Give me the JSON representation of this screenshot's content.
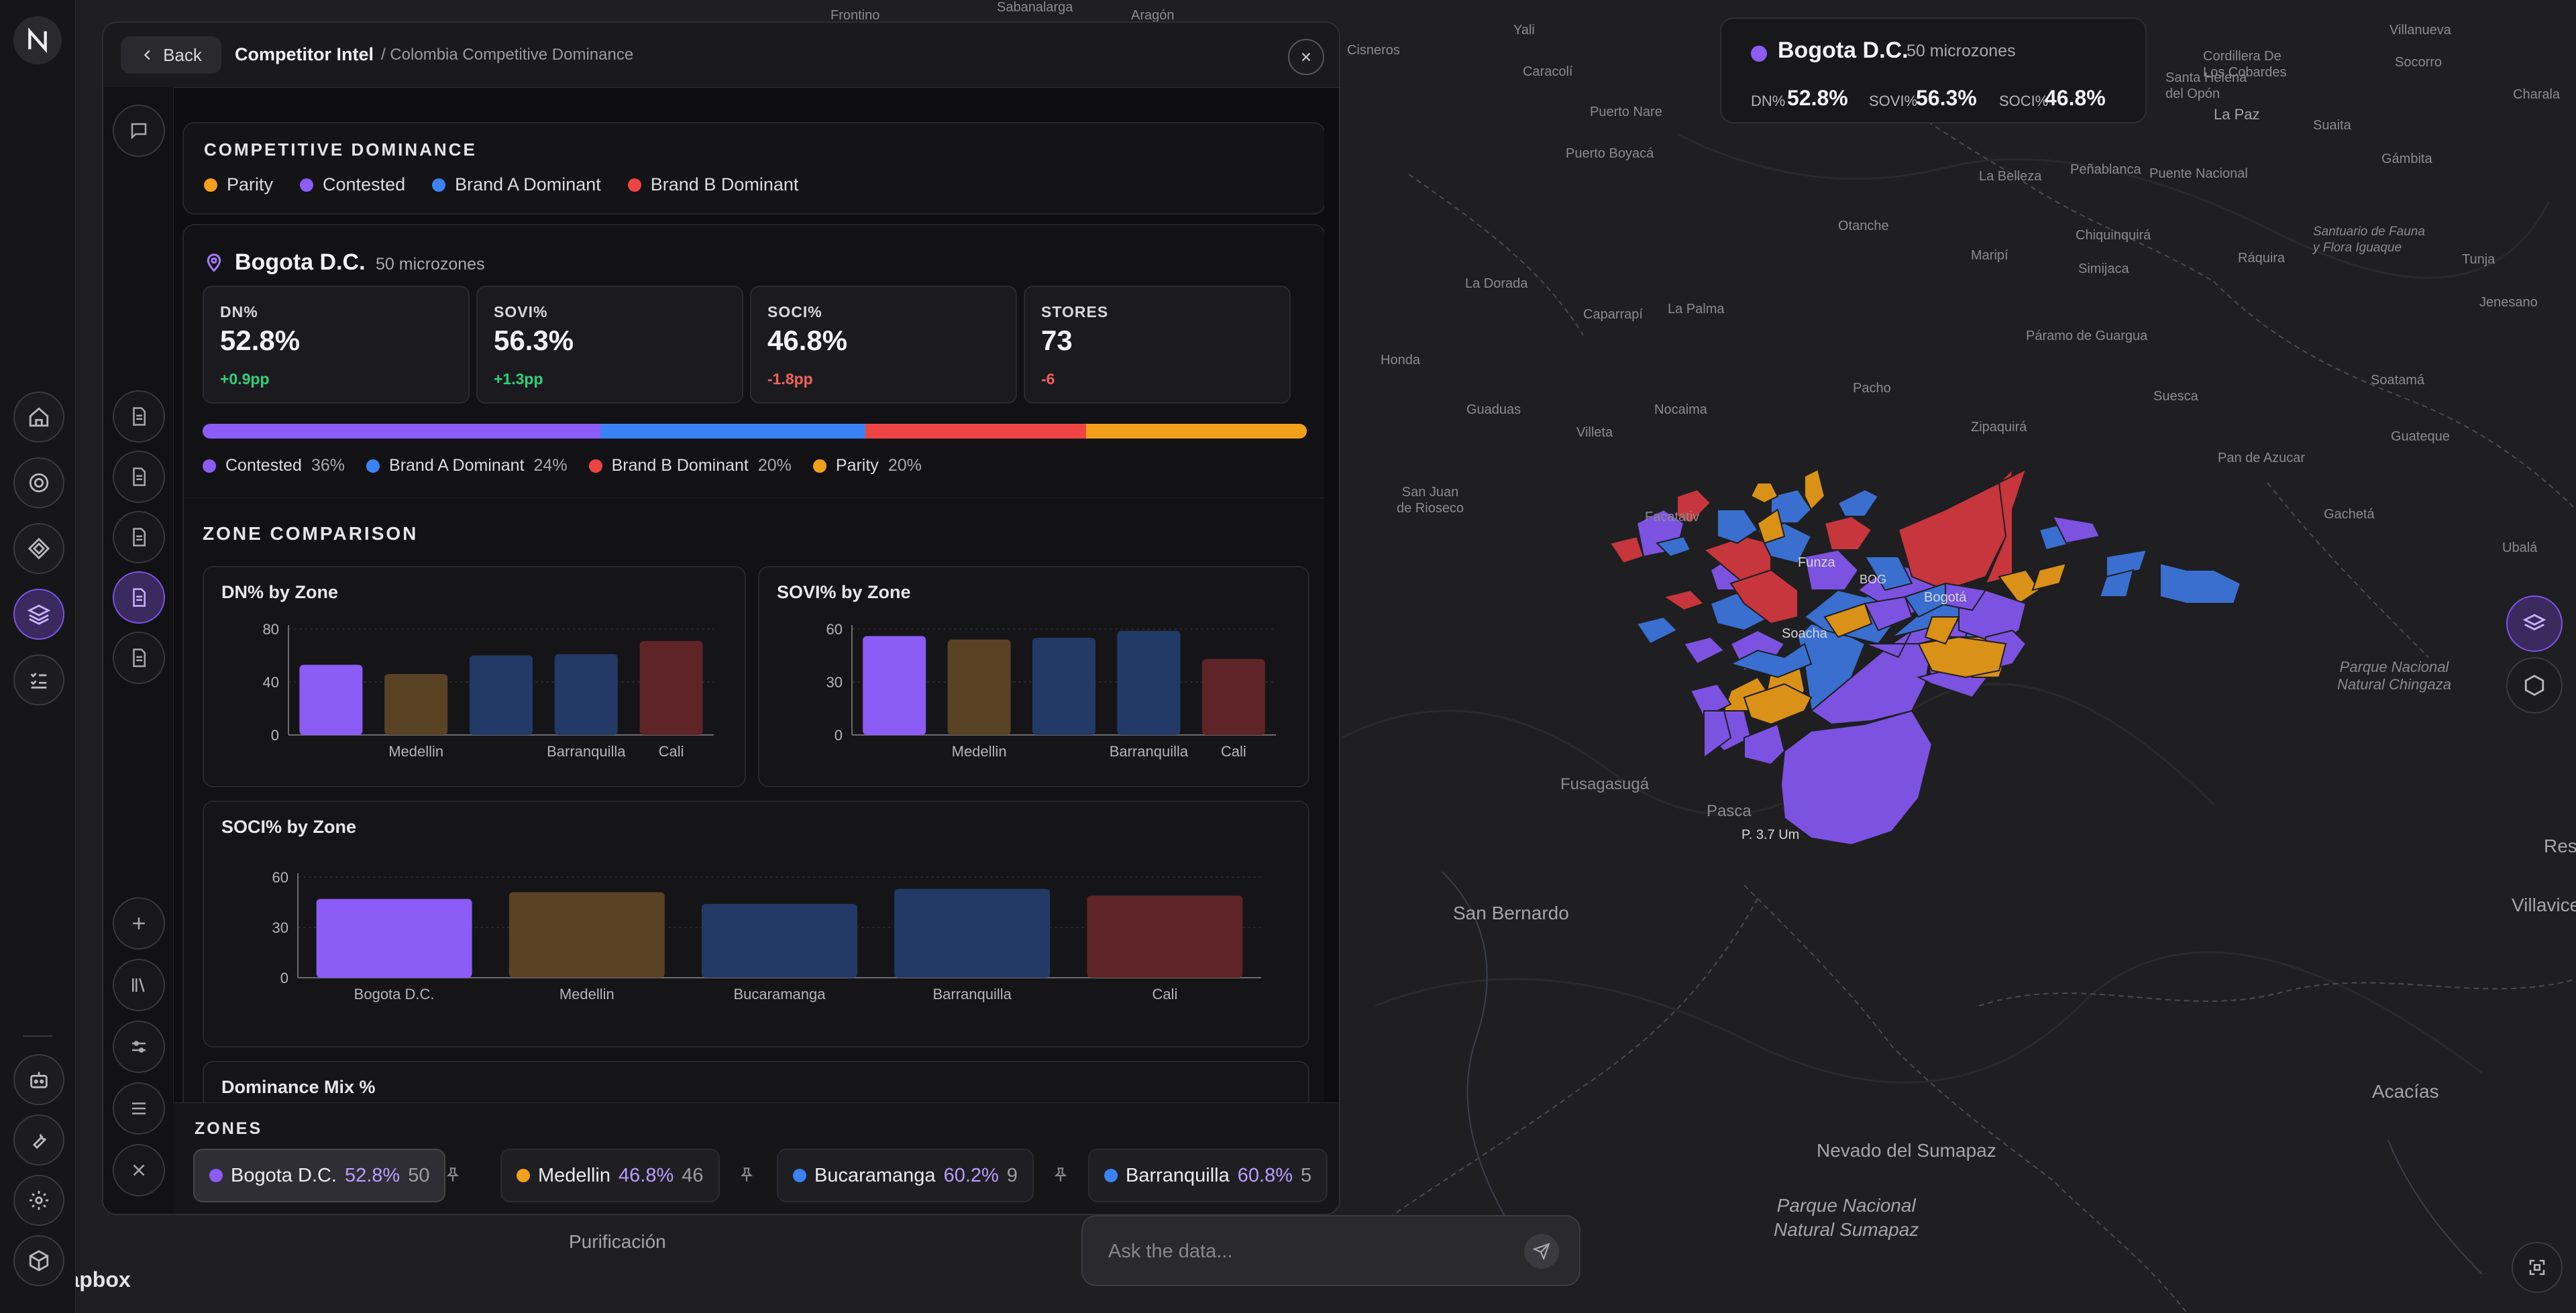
{
  "map": {
    "labels": {
      "frontino": "Frontino",
      "sabanalarga": "Sabanalarga",
      "aragon": "Aragón",
      "yali": "Yali",
      "cisneros": "Cisneros",
      "caracoli": "Caracolí",
      "puerto_nare": "Puerto Nare",
      "puerto_boyaca": "Puerto Boyacá",
      "villanueva": "Villanueva",
      "socorro": "Socorro",
      "charala": "Charala",
      "cordillera": "Cordillera De\nLos Cobardes",
      "santa_helena": "Santa Helena\ndel Opón",
      "la_paz": "La Paz",
      "suaita": "Suaita",
      "gambita": "Gámbita",
      "la_belleza": "La Belleza",
      "penablanca": "Peñablanca",
      "puente_nacional": "Puente Nacional",
      "otanche": "Otanche",
      "chiquinquira": "Chiquinquirá",
      "maripi": "Maripí",
      "simijaca": "Simijaca",
      "raquira": "Ráquira",
      "santuario": "Santuario de Fauna\ny Flora Iguaque",
      "tunja": "Tunja",
      "jenesano": "Jenesano",
      "la_dorada": "La Dorada",
      "caparrapi": "Caparrapí",
      "la_palma": "La Palma",
      "paramo": "Páramo de Guargua",
      "honda": "Honda",
      "guaduas": "Guaduas",
      "nocaima": "Nocaima",
      "pacho": "Pacho",
      "villeta": "Villeta",
      "zipaquira": "Zipaquirá",
      "suesca": "Suesca",
      "soatama": "Soatamá",
      "guateque": "Guateque",
      "pan_de_azucar": "Pan de Azucar",
      "gacheta": "Gachetá",
      "ubala": "Ubalá",
      "san_juan": "San Juan\nde Rioseco",
      "facatativa": "Facatativ",
      "funza": "Funza",
      "bog": "BOG",
      "bogota": "Bogotá",
      "soacha": "Soacha",
      "parque_chingaza": "Parque Nacional\nNatural Chingaza",
      "fusagasuga": "Fusagasugá",
      "pasca": "Pasca",
      "p_3": "P. 3.7 Um",
      "san_bernardo": "San Bernardo",
      "villavice": "Villavice",
      "res": "Res",
      "acacias": "Acacías",
      "nevado": "Nevado del Sumapaz",
      "sumapaz": "Parque Nacional\nNatural Sumapaz",
      "purificacion": "Purificación"
    },
    "colors": {
      "background": "#1f1f21",
      "contested": "#7c52e0",
      "brand_a": "#3a6fd0",
      "brand_b": "#c7353d",
      "parity": "#d99117"
    },
    "attribution": "mapbox"
  },
  "rail": {
    "logo_icon": "logo-icon",
    "items": [
      "home-icon",
      "target-icon",
      "diamond-icon",
      "layers-icon",
      "checklist-icon"
    ],
    "bottom_items": [
      "robot-icon",
      "wrench-icon",
      "settings-icon",
      "package-icon"
    ]
  },
  "panel": {
    "back_label": "Back",
    "title": "Competitor Intel",
    "breadcrumb": "/ Colombia Competitive Dominance",
    "side_buttons": [
      "chat-icon",
      "document-icon",
      "document-icon",
      "document-icon",
      "document-icon",
      "document-icon"
    ],
    "side_bottom": [
      "plus-icon",
      "library-icon",
      "sliders-icon",
      "list-icon",
      "close-icon"
    ],
    "dominance": {
      "title": "COMPETITIVE DOMINANCE",
      "legend": [
        {
          "label": "Parity",
          "color": "#f2a01c"
        },
        {
          "label": "Contested",
          "color": "#8b5cf6"
        },
        {
          "label": "Brand A Dominant",
          "color": "#3b82f6"
        },
        {
          "label": "Brand B Dominant",
          "color": "#ef4444"
        }
      ]
    },
    "region": {
      "name": "Bogota D.C.",
      "microzones": "50 microzones",
      "stats": [
        {
          "label": "DN%",
          "value": "52.8%",
          "delta": "+0.9pp",
          "trend": "up"
        },
        {
          "label": "SOVI%",
          "value": "56.3%",
          "delta": "+1.3pp",
          "trend": "up"
        },
        {
          "label": "SOCI%",
          "value": "46.8%",
          "delta": "-1.8pp",
          "trend": "down"
        },
        {
          "label": "STORES",
          "value": "73",
          "delta": "-6",
          "trend": "down"
        }
      ],
      "mix": [
        {
          "label": "Contested",
          "pct": "36%",
          "value": 36,
          "color": "#8b5cf6"
        },
        {
          "label": "Brand A Dominant",
          "pct": "24%",
          "value": 24,
          "color": "#3b82f6"
        },
        {
          "label": "Brand B Dominant",
          "pct": "20%",
          "value": 20,
          "color": "#ef4444"
        },
        {
          "label": "Parity",
          "pct": "20%",
          "value": 20,
          "color": "#f2a01c"
        }
      ]
    },
    "zone_comparison": {
      "title": "ZONE COMPARISON",
      "mix_title": "Dominance Mix %"
    }
  },
  "chart_data": [
    {
      "type": "bar",
      "title": "DN% by Zone",
      "categories": [
        "Bogota D.C.",
        "Medellin",
        "Bucaramanga",
        "Barranquilla",
        "Cali"
      ],
      "visible_tick_labels": [
        "",
        "Medellin",
        "",
        "Barranquilla",
        "Cali"
      ],
      "values": [
        53,
        46,
        60,
        61,
        71
      ],
      "colors": [
        "#8b5cf6",
        "#5a4225",
        "#233a66",
        "#233a66",
        "#5e2428"
      ],
      "yticks": [
        0,
        40,
        80
      ],
      "ylim": [
        0,
        80
      ],
      "grid": true
    },
    {
      "type": "bar",
      "title": "SOVI% by Zone",
      "categories": [
        "Bogota D.C.",
        "Medellin",
        "Bucaramanga",
        "Barranquilla",
        "Cali"
      ],
      "visible_tick_labels": [
        "",
        "Medellin",
        "",
        "Barranquilla",
        "Cali"
      ],
      "values": [
        56,
        54,
        55,
        59,
        43
      ],
      "colors": [
        "#8b5cf6",
        "#5a4225",
        "#233a66",
        "#233a66",
        "#5e2428"
      ],
      "yticks": [
        0,
        30,
        60
      ],
      "ylim": [
        0,
        60
      ],
      "grid": true
    },
    {
      "type": "bar",
      "title": "SOCI% by Zone",
      "categories": [
        "Bogota D.C.",
        "Medellin",
        "Bucaramanga",
        "Barranquilla",
        "Cali"
      ],
      "visible_tick_labels": [
        "Bogota D.C.",
        "Medellin",
        "Bucaramanga",
        "Barranquilla",
        "Cali"
      ],
      "values": [
        47,
        51,
        44,
        53,
        49
      ],
      "colors": [
        "#8b5cf6",
        "#5a4225",
        "#233a66",
        "#233a66",
        "#5e2428"
      ],
      "yticks": [
        0,
        30,
        60
      ],
      "ylim": [
        0,
        60
      ],
      "grid": true
    }
  ],
  "zones": {
    "title": "ZONES",
    "items": [
      {
        "name": "Bogota D.C.",
        "pct": "52.8%",
        "count": "50",
        "color": "#8b5cf6"
      },
      {
        "name": "Medellin",
        "pct": "46.8%",
        "count": "46",
        "color": "#f2a01c"
      },
      {
        "name": "Bucaramanga",
        "pct": "60.2%",
        "count": "9",
        "color": "#3b82f6"
      },
      {
        "name": "Barranquilla",
        "pct": "60.8%",
        "count": "5",
        "color": "#3b82f6"
      }
    ]
  },
  "tooltip": {
    "name": "Bogota D.C.",
    "sub": "50 microzones",
    "metrics": [
      {
        "label": "DN%",
        "value": "52.8%"
      },
      {
        "label": "SOVI%",
        "value": "56.3%"
      },
      {
        "label": "SOCI%",
        "value": "46.8%"
      }
    ]
  },
  "ask": {
    "placeholder": "Ask the data..."
  }
}
